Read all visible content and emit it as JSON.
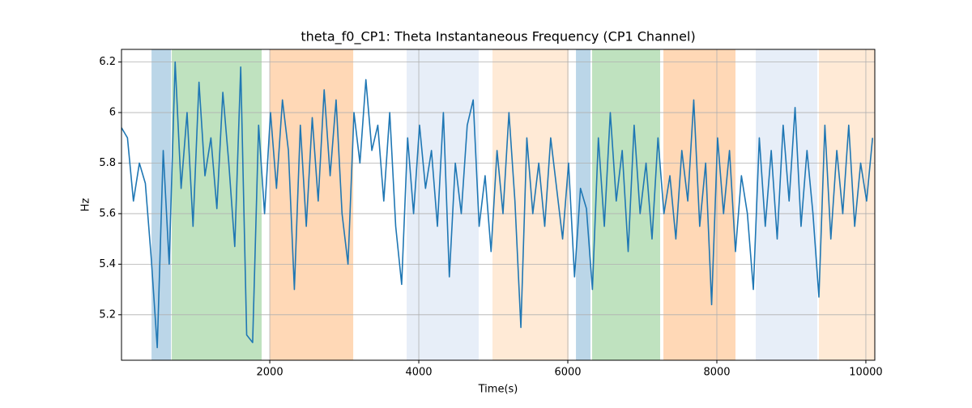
{
  "chart_data": {
    "type": "line",
    "title": "theta_f0_CP1: Theta Instantaneous Frequency (CP1 Channel)",
    "x_label": "Time(s)",
    "y_label": "Hz",
    "xlim": [
      10,
      10120
    ],
    "ylim": [
      5.02,
      6.25
    ],
    "xticks": [
      2000,
      4000,
      6000,
      8000,
      10000
    ],
    "yticks": [
      5.2,
      5.4,
      5.6,
      5.8,
      6.0,
      6.2
    ],
    "grid": true,
    "span_alpha": 0.3,
    "spans": [
      {
        "start": 413,
        "end": 674,
        "color": "#1f77b4"
      },
      {
        "start": 685,
        "end": 1891,
        "color": "#2ca02c"
      },
      {
        "start": 2000,
        "end": 3120,
        "color": "#ff7f0e"
      },
      {
        "start": 3837,
        "end": 4804,
        "color": "#aec7e8"
      },
      {
        "start": 4989,
        "end": 6011,
        "color": "#ffbb78"
      },
      {
        "start": 6109,
        "end": 6304,
        "color": "#1f77b4"
      },
      {
        "start": 6326,
        "end": 7239,
        "color": "#2ca02c"
      },
      {
        "start": 7283,
        "end": 8250,
        "color": "#ff7f0e"
      },
      {
        "start": 8522,
        "end": 9348,
        "color": "#aec7e8"
      },
      {
        "start": 9370,
        "end": 10120,
        "color": "#ffbb78"
      }
    ],
    "x": [
      10,
      90,
      170,
      250,
      330,
      410,
      490,
      570,
      650,
      730,
      810,
      890,
      970,
      1050,
      1130,
      1210,
      1290,
      1370,
      1450,
      1530,
      1610,
      1690,
      1770,
      1850,
      1930,
      2010,
      2090,
      2170,
      2250,
      2330,
      2410,
      2490,
      2570,
      2650,
      2730,
      2810,
      2890,
      2970,
      3050,
      3130,
      3210,
      3290,
      3370,
      3450,
      3530,
      3610,
      3690,
      3770,
      3850,
      3930,
      4010,
      4090,
      4170,
      4250,
      4330,
      4410,
      4490,
      4570,
      4650,
      4730,
      4810,
      4890,
      4970,
      5050,
      5130,
      5210,
      5290,
      5370,
      5450,
      5530,
      5610,
      5690,
      5770,
      5850,
      5930,
      6010,
      6090,
      6170,
      6250,
      6330,
      6410,
      6490,
      6570,
      6650,
      6730,
      6810,
      6890,
      6970,
      7050,
      7130,
      7210,
      7290,
      7370,
      7450,
      7530,
      7610,
      7690,
      7770,
      7850,
      7930,
      8010,
      8090,
      8170,
      8250,
      8330,
      8410,
      8490,
      8570,
      8650,
      8730,
      8810,
      8890,
      8970,
      9050,
      9130,
      9210,
      9290,
      9370,
      9450,
      9530,
      9610,
      9690,
      9770,
      9850,
      9930,
      10010,
      10090
    ],
    "series": [
      {
        "color": "#1f77b4",
        "values": [
          5.94,
          5.9,
          5.65,
          5.8,
          5.72,
          5.42,
          5.07,
          5.85,
          5.4,
          6.2,
          5.7,
          6.0,
          5.55,
          6.12,
          5.75,
          5.9,
          5.62,
          6.08,
          5.8,
          5.47,
          6.18,
          5.12,
          5.09,
          5.95,
          5.6,
          6.0,
          5.7,
          6.05,
          5.85,
          5.3,
          5.95,
          5.55,
          5.98,
          5.65,
          6.09,
          5.75,
          6.05,
          5.6,
          5.4,
          6.0,
          5.8,
          6.13,
          5.85,
          5.95,
          5.65,
          6.0,
          5.55,
          5.32,
          5.9,
          5.6,
          5.95,
          5.7,
          5.85,
          5.55,
          6.0,
          5.35,
          5.8,
          5.6,
          5.95,
          6.05,
          5.55,
          5.75,
          5.45,
          5.85,
          5.6,
          6.0,
          5.65,
          5.15,
          5.9,
          5.6,
          5.8,
          5.55,
          5.9,
          5.7,
          5.5,
          5.8,
          5.35,
          5.7,
          5.62,
          5.3,
          5.9,
          5.55,
          6.0,
          5.65,
          5.85,
          5.45,
          5.95,
          5.6,
          5.8,
          5.5,
          5.9,
          5.6,
          5.75,
          5.5,
          5.85,
          5.65,
          6.05,
          5.55,
          5.8,
          5.24,
          5.9,
          5.6,
          5.85,
          5.45,
          5.75,
          5.6,
          5.3,
          5.9,
          5.55,
          5.85,
          5.5,
          5.95,
          5.65,
          6.02,
          5.55,
          5.85,
          5.6,
          5.27,
          5.95,
          5.5,
          5.85,
          5.6,
          5.95,
          5.55,
          5.8,
          5.65,
          5.9
        ]
      }
    ]
  }
}
